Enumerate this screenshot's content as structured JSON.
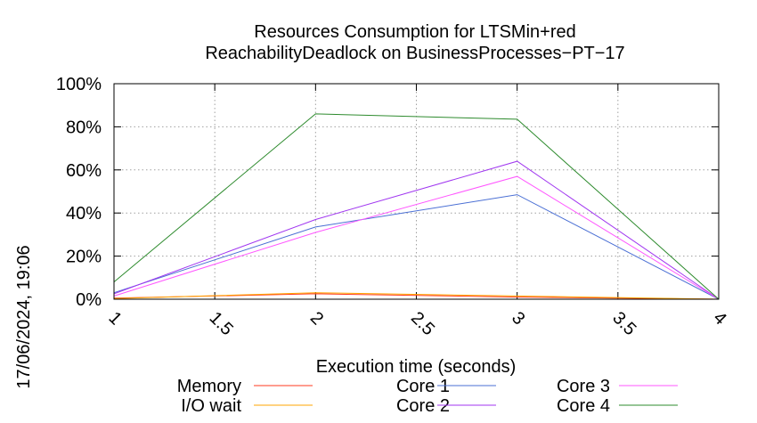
{
  "chart_data": {
    "type": "line",
    "title": "Resources Consumption for LTSMin+red",
    "subtitle": "ReachabilityDeadlock on BusinessProcesses−PT−17",
    "xlabel": "Execution time (seconds)",
    "ylabel": "",
    "side_label": "17/06/2024, 19:06",
    "xlim": [
      1,
      4
    ],
    "ylim": [
      0,
      100
    ],
    "x_ticks": [
      {
        "value": 1,
        "label": "1"
      },
      {
        "value": 1.5,
        "label": "1.5"
      },
      {
        "value": 2,
        "label": "2"
      },
      {
        "value": 2.5,
        "label": "2.5"
      },
      {
        "value": 3,
        "label": "3"
      },
      {
        "value": 3.5,
        "label": "3.5"
      },
      {
        "value": 4,
        "label": "4"
      }
    ],
    "y_ticks": [
      {
        "value": 0,
        "label": "0%"
      },
      {
        "value": 20,
        "label": "20%"
      },
      {
        "value": 40,
        "label": "40%"
      },
      {
        "value": 60,
        "label": "60%"
      },
      {
        "value": 80,
        "label": "80%"
      },
      {
        "value": 100,
        "label": "100%"
      }
    ],
    "grid": true,
    "legend_position": "bottom",
    "x": [
      1,
      2,
      3,
      4
    ],
    "series": [
      {
        "name": "Memory",
        "color": "#ff3a1f",
        "values": [
          0.5,
          2.5,
          1.0,
          0
        ]
      },
      {
        "name": "I/O wait",
        "color": "#ffa500",
        "values": [
          0.3,
          3.0,
          1.5,
          0
        ]
      },
      {
        "name": "Core 1",
        "color": "#4a6fd4",
        "values": [
          3.0,
          33.5,
          48.5,
          0
        ]
      },
      {
        "name": "Core 2",
        "color": "#a036f0",
        "values": [
          2.5,
          37.0,
          64.0,
          0
        ]
      },
      {
        "name": "Core 3",
        "color": "#ff55ff",
        "values": [
          1.5,
          31.0,
          57.0,
          0
        ]
      },
      {
        "name": "Core 4",
        "color": "#2e8b2e",
        "values": [
          8.0,
          86.0,
          83.5,
          0
        ]
      }
    ]
  }
}
